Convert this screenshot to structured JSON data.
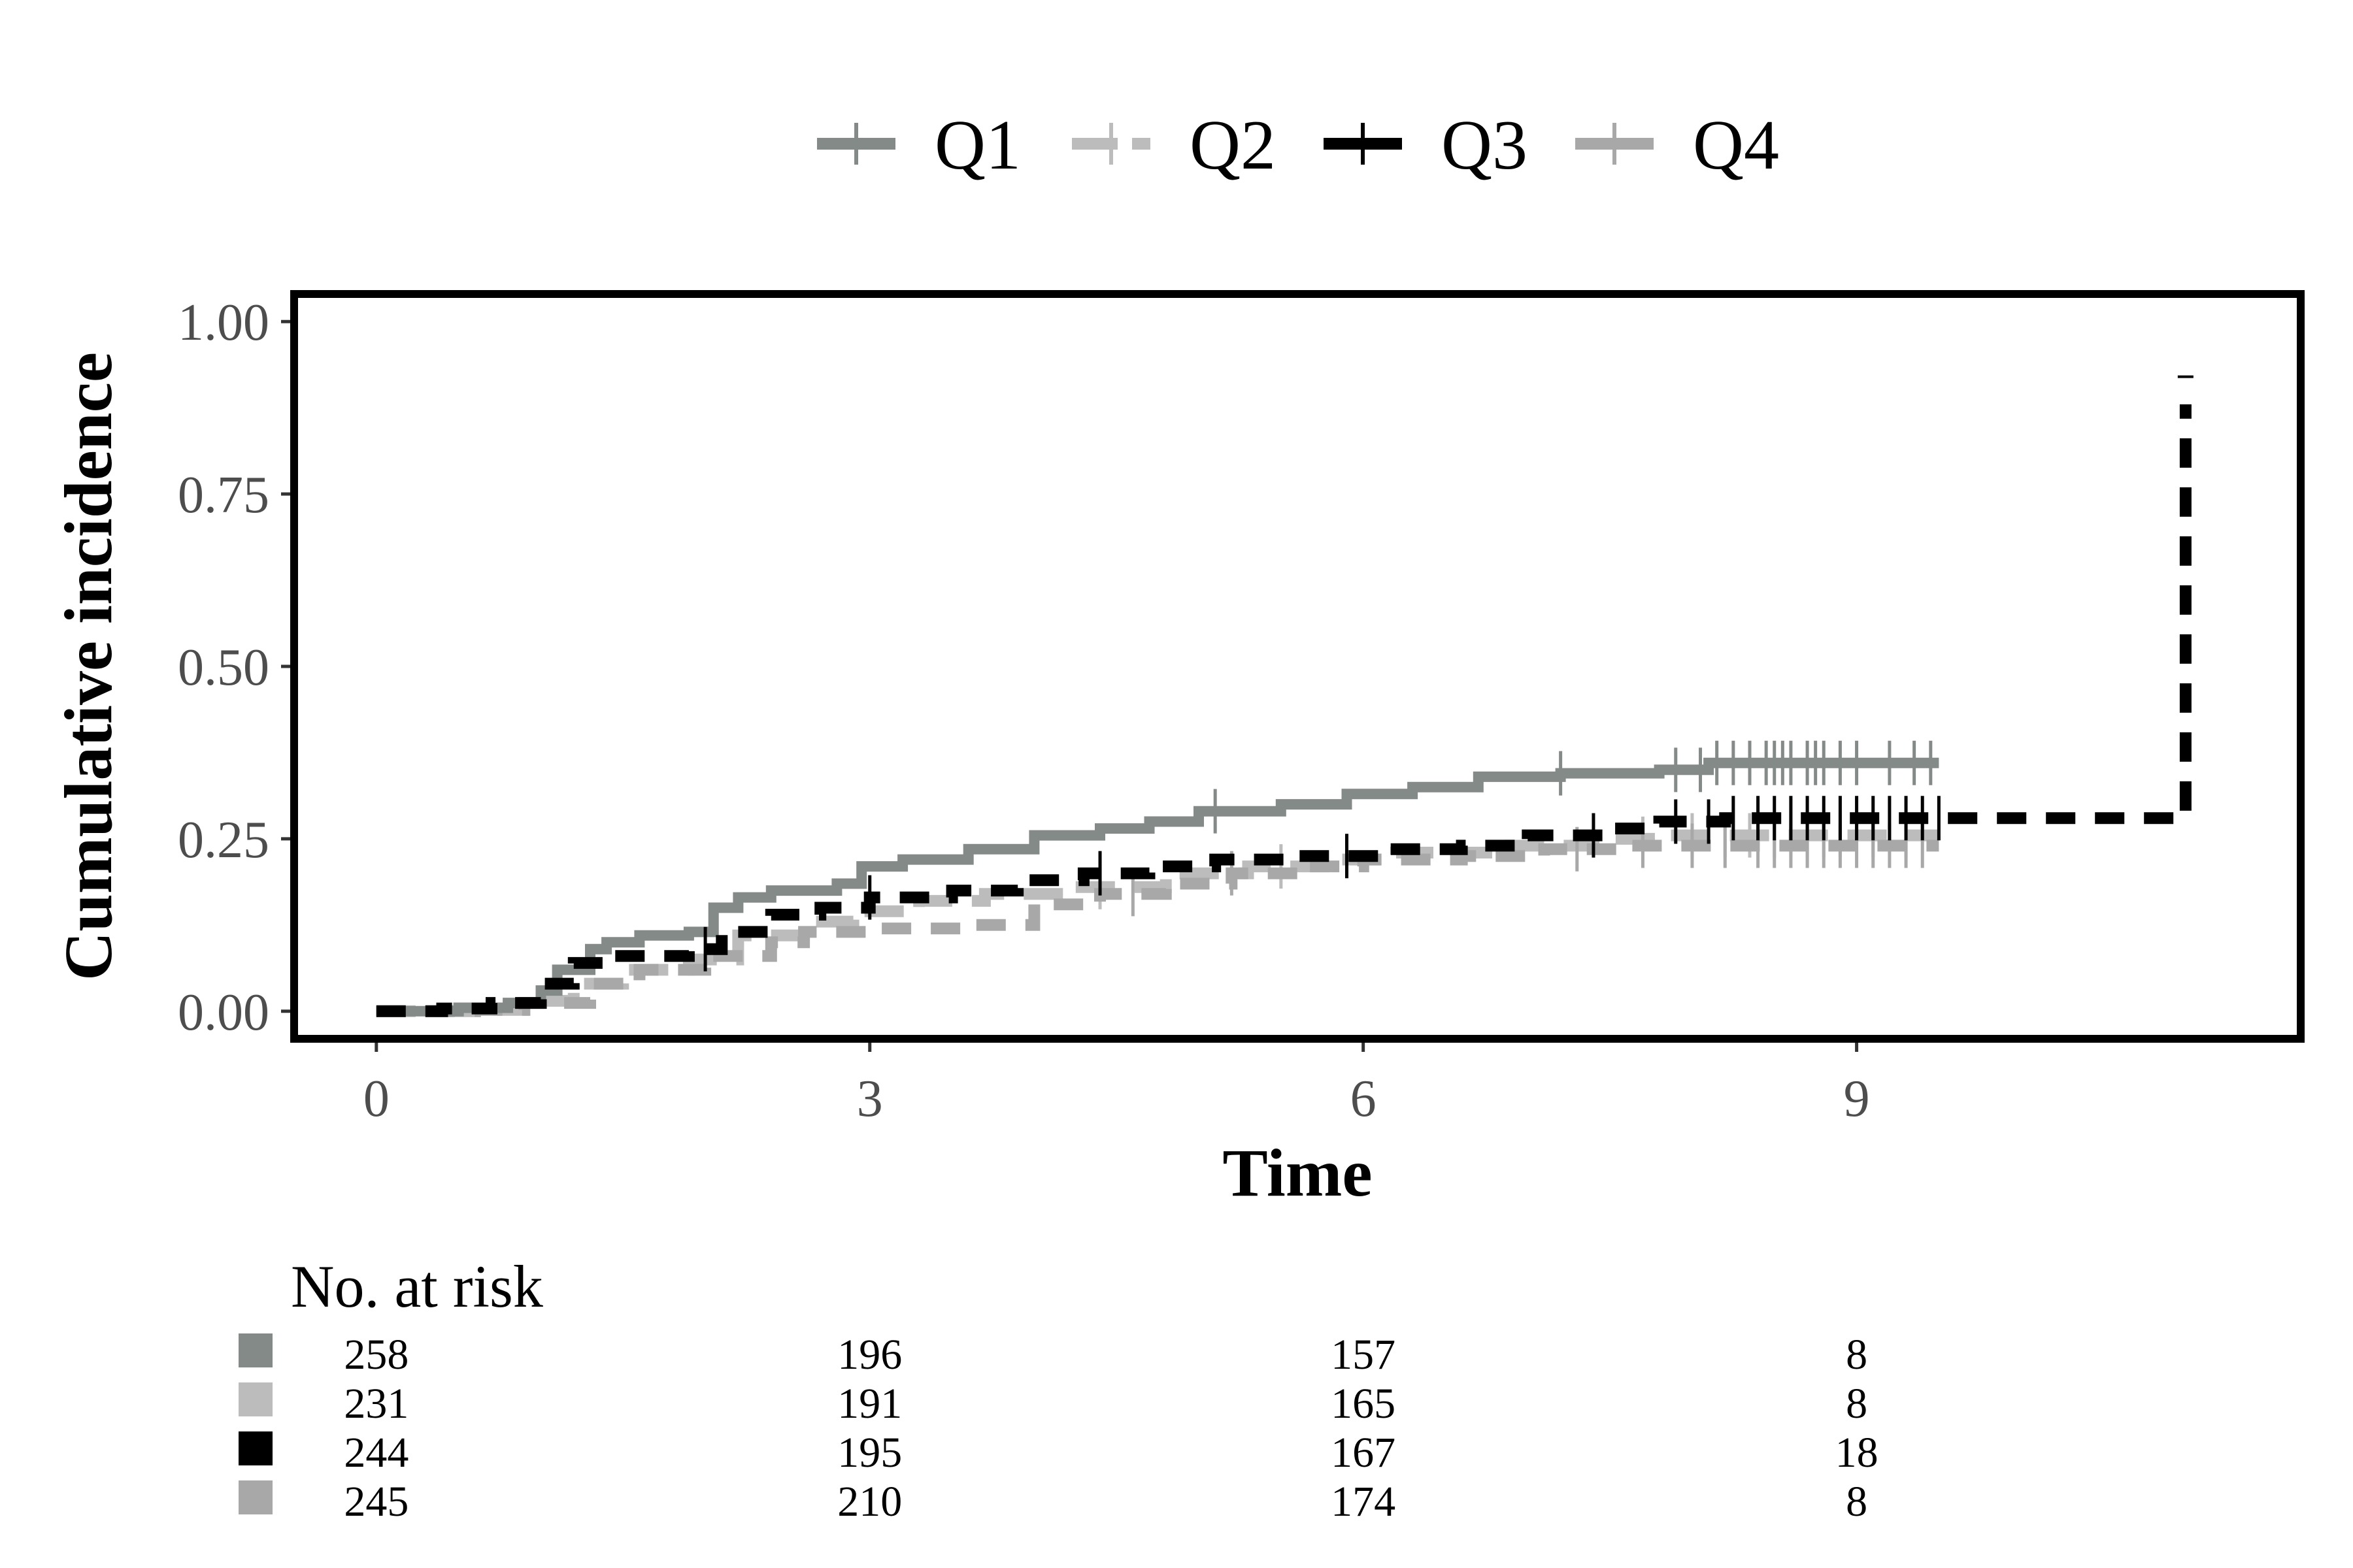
{
  "chart_data": {
    "type": "line",
    "subtype": "cumulative-incidence",
    "ylabel": "Cumulative incidence",
    "xlabel": "Time",
    "xlim": [
      -0.5,
      11.7
    ],
    "ylim": [
      -0.04,
      1.04
    ],
    "xticks": [
      0,
      3,
      6,
      9
    ],
    "xtick_labels": [
      "0",
      "3",
      "6",
      "9"
    ],
    "yticks": [
      0,
      0.25,
      0.5,
      0.75,
      1
    ],
    "ytick_labels": [
      "0.00",
      "0.25",
      "0.50",
      "0.75",
      "1.00"
    ],
    "legend_position": "top",
    "series": [
      {
        "name": "Q1",
        "color": "#848a87",
        "dash": "solid",
        "points": [
          [
            0,
            0
          ],
          [
            0.5,
            0.005
          ],
          [
            0.8,
            0.012
          ],
          [
            1.0,
            0.03
          ],
          [
            1.1,
            0.06
          ],
          [
            1.3,
            0.09
          ],
          [
            1.4,
            0.1
          ],
          [
            1.6,
            0.11
          ],
          [
            1.9,
            0.115
          ],
          [
            2.05,
            0.15
          ],
          [
            2.2,
            0.165
          ],
          [
            2.4,
            0.175
          ],
          [
            2.8,
            0.185
          ],
          [
            2.95,
            0.21
          ],
          [
            3.2,
            0.22
          ],
          [
            3.6,
            0.235
          ],
          [
            4.0,
            0.255
          ],
          [
            4.4,
            0.265
          ],
          [
            4.7,
            0.275
          ],
          [
            5.0,
            0.29
          ],
          [
            5.5,
            0.3
          ],
          [
            5.9,
            0.315
          ],
          [
            6.3,
            0.325
          ],
          [
            6.7,
            0.34
          ],
          [
            7.2,
            0.345
          ],
          [
            7.8,
            0.35
          ],
          [
            8.1,
            0.36
          ],
          [
            9.5,
            0.36
          ]
        ],
        "censor_x": [
          5.1,
          7.2,
          7.9,
          8.05,
          8.15,
          8.25,
          8.35,
          8.45,
          8.5,
          8.55,
          8.6,
          8.7,
          8.75,
          8.8,
          8.9,
          9.0,
          9.2,
          9.35,
          9.45
        ]
      },
      {
        "name": "Q2",
        "color": "#bcbcbc",
        "dash": "longdash",
        "points": [
          [
            0,
            0
          ],
          [
            0.6,
            0.002
          ],
          [
            0.9,
            0.015
          ],
          [
            1.2,
            0.04
          ],
          [
            1.5,
            0.06
          ],
          [
            1.9,
            0.075
          ],
          [
            2.2,
            0.11
          ],
          [
            2.6,
            0.13
          ],
          [
            2.9,
            0.145
          ],
          [
            3.3,
            0.16
          ],
          [
            3.7,
            0.17
          ],
          [
            4.2,
            0.18
          ],
          [
            4.8,
            0.2
          ],
          [
            5.3,
            0.21
          ],
          [
            5.8,
            0.22
          ],
          [
            6.2,
            0.23
          ],
          [
            6.8,
            0.24
          ],
          [
            7.4,
            0.25
          ],
          [
            7.8,
            0.255
          ],
          [
            9.5,
            0.255
          ]
        ],
        "censor_x": [
          4.4,
          5.5,
          7.7,
          8.0,
          8.2,
          8.35,
          8.5,
          8.6,
          8.7,
          8.8,
          8.9,
          9.1,
          9.3
        ]
      },
      {
        "name": "Q3",
        "color": "#000000",
        "dash": "dashed",
        "points": [
          [
            0,
            0
          ],
          [
            0.4,
            0.004
          ],
          [
            0.7,
            0.012
          ],
          [
            1.0,
            0.04
          ],
          [
            1.2,
            0.07
          ],
          [
            1.4,
            0.08
          ],
          [
            1.9,
            0.09
          ],
          [
            2.1,
            0.115
          ],
          [
            2.4,
            0.14
          ],
          [
            2.7,
            0.15
          ],
          [
            3.0,
            0.165
          ],
          [
            3.5,
            0.175
          ],
          [
            3.9,
            0.19
          ],
          [
            4.3,
            0.2
          ],
          [
            4.7,
            0.21
          ],
          [
            5.1,
            0.22
          ],
          [
            5.6,
            0.225
          ],
          [
            6.1,
            0.235
          ],
          [
            6.6,
            0.24
          ],
          [
            7.0,
            0.255
          ],
          [
            7.5,
            0.265
          ],
          [
            7.8,
            0.275
          ],
          [
            8.2,
            0.28
          ],
          [
            9.7,
            0.28
          ],
          [
            11.0,
            0.28
          ],
          [
            11.0,
            0.88
          ]
        ],
        "censor_x": [
          2.0,
          3.0,
          4.4,
          5.9,
          7.4,
          7.9,
          8.1,
          8.25,
          8.4,
          8.5,
          8.6,
          8.7,
          8.8,
          8.9,
          9.0,
          9.1,
          9.2,
          9.3,
          9.4,
          9.5
        ],
        "censor_top": [
          11.0,
          0.92
        ]
      },
      {
        "name": "Q4",
        "color": "#a8a8a8",
        "dash": "dashed",
        "points": [
          [
            0,
            0
          ],
          [
            0.6,
            0.002
          ],
          [
            0.9,
            0.012
          ],
          [
            1.3,
            0.04
          ],
          [
            1.6,
            0.06
          ],
          [
            2.0,
            0.08
          ],
          [
            2.4,
            0.1
          ],
          [
            2.6,
            0.115
          ],
          [
            3.0,
            0.12
          ],
          [
            3.6,
            0.125
          ],
          [
            4.0,
            0.155
          ],
          [
            4.4,
            0.17
          ],
          [
            4.8,
            0.185
          ],
          [
            5.2,
            0.2
          ],
          [
            5.6,
            0.21
          ],
          [
            6.0,
            0.22
          ],
          [
            6.6,
            0.225
          ],
          [
            7.1,
            0.235
          ],
          [
            7.6,
            0.24
          ],
          [
            9.5,
            0.24
          ]
        ],
        "censor_x": [
          4.6,
          5.2,
          7.3,
          7.7,
          8.0,
          8.2,
          8.4,
          8.5,
          8.6,
          8.7,
          8.8,
          8.9,
          9.0,
          9.1,
          9.2,
          9.3,
          9.4
        ]
      }
    ],
    "risk_table": {
      "title": "No. at risk",
      "times": [
        0,
        3,
        6,
        9
      ],
      "rows": [
        {
          "group": "Q1",
          "color": "#848a87",
          "values": [
            "258",
            "196",
            "157",
            "8"
          ]
        },
        {
          "group": "Q2",
          "color": "#bcbcbc",
          "values": [
            "231",
            "191",
            "165",
            "8"
          ]
        },
        {
          "group": "Q3",
          "color": "#000000",
          "values": [
            "244",
            "195",
            "167",
            "18"
          ]
        },
        {
          "group": "Q4",
          "color": "#a8a8a8",
          "values": [
            "245",
            "210",
            "174",
            "8"
          ]
        }
      ]
    }
  }
}
